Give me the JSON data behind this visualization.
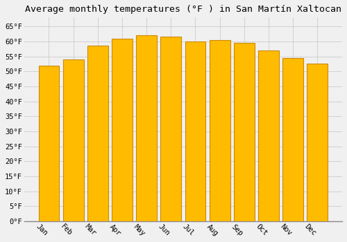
{
  "title": "Average monthly temperatures (°F ) in San Martín Xaltocan",
  "months": [
    "Jan",
    "Feb",
    "Mar",
    "Apr",
    "May",
    "Jun",
    "Jul",
    "Aug",
    "Sep",
    "Oct",
    "Nov",
    "Dec"
  ],
  "values": [
    52,
    54,
    58.5,
    61,
    62,
    61.5,
    60,
    60.5,
    59.5,
    57,
    54.5,
    52.5
  ],
  "bar_color": "#FFBB00",
  "bar_edge_color": "#CC8800",
  "background_color": "#F0F0F0",
  "grid_color": "#CCCCCC",
  "ytick_labels": [
    "0°F",
    "5°F",
    "10°F",
    "15°F",
    "20°F",
    "25°F",
    "30°F",
    "35°F",
    "40°F",
    "45°F",
    "50°F",
    "55°F",
    "60°F",
    "65°F"
  ],
  "ytick_values": [
    0,
    5,
    10,
    15,
    20,
    25,
    30,
    35,
    40,
    45,
    50,
    55,
    60,
    65
  ],
  "ylim": [
    0,
    68
  ],
  "title_fontsize": 9.5,
  "tick_fontsize": 7.5,
  "font_family": "monospace",
  "label_rotation": -45
}
